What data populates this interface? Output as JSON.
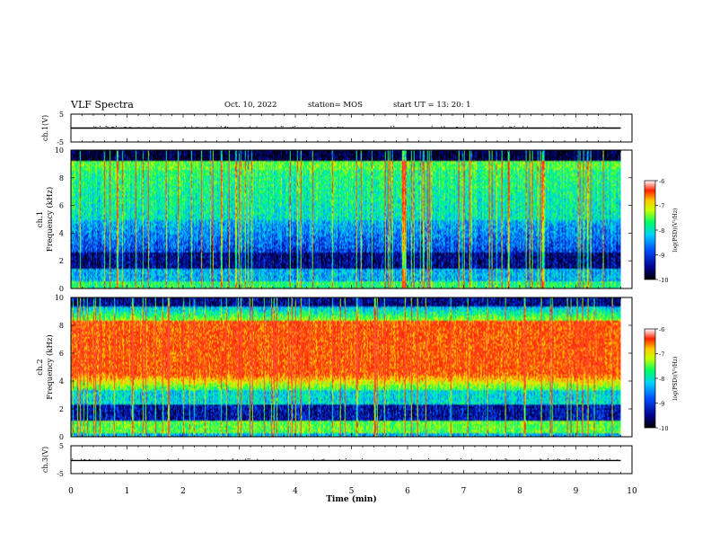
{
  "header": {
    "title": "VLF Spectra",
    "date": "Oct. 10, 2022",
    "station": "station= MOS",
    "start_ut": "start  UT =   13: 20: 1"
  },
  "chart_data": [
    {
      "type": "line",
      "name": "ch1-voltage",
      "ylabel": "ch.1(V)",
      "ylim": [
        -5,
        5
      ],
      "yticks": [
        "5",
        "-5"
      ],
      "xlim": [
        0,
        10
      ],
      "x": [
        0,
        9.8
      ],
      "values": [
        0,
        0
      ]
    },
    {
      "type": "heatmap",
      "name": "ch1-spectrogram",
      "ylabel_top": "ch.1",
      "ylabel": "Frequency (kHz)",
      "ylim": [
        0,
        10
      ],
      "yticks": [
        "0",
        "2",
        "4",
        "6",
        "8",
        "10"
      ],
      "xlim": [
        0,
        10
      ],
      "data_end_min": 9.8,
      "colorbar": {
        "label": "log(PSD)(V²/Hz)",
        "range": [
          -10,
          -6
        ],
        "ticks": [
          "-6",
          "-7",
          "-8",
          "-9",
          "-10"
        ]
      }
    },
    {
      "type": "heatmap",
      "name": "ch2-spectrogram",
      "ylabel_top": "ch.2",
      "ylabel": "Frequency (kHz)",
      "ylim": [
        0,
        10
      ],
      "yticks": [
        "0",
        "2",
        "4",
        "6",
        "8",
        "10"
      ],
      "xlim": [
        0,
        10
      ],
      "data_end_min": 9.8,
      "colorbar": {
        "label": "log(PSD)(V²/Hz)",
        "range": [
          -10,
          -6
        ],
        "ticks": [
          "-6",
          "-7",
          "-8",
          "-9",
          "-10"
        ]
      }
    },
    {
      "type": "line",
      "name": "ch3-voltage",
      "ylabel": "ch.3(V)",
      "ylim": [
        -5,
        5
      ],
      "yticks": [
        "5",
        "-5"
      ],
      "xlim": [
        0,
        10
      ],
      "x": [
        0,
        9.8
      ],
      "values": [
        -0.3,
        -0.3
      ],
      "xlabel": "Time (min)",
      "xticks": [
        "0",
        "1",
        "2",
        "3",
        "4",
        "5",
        "6",
        "7",
        "8",
        "9",
        "10"
      ]
    }
  ]
}
